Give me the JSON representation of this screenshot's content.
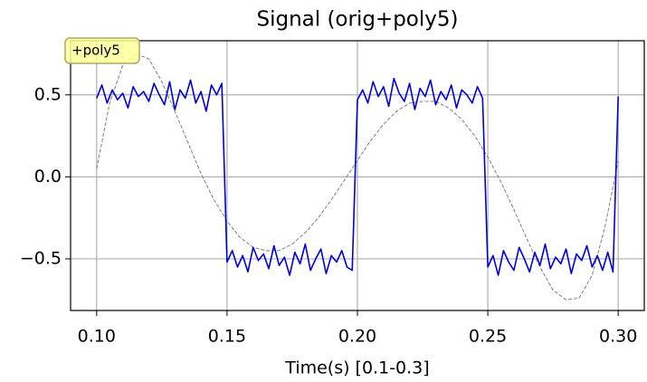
{
  "chart_data": {
    "type": "line",
    "title": "Signal (orig+poly5)",
    "x_label": "Time(s) [0.1-0.3]",
    "annotation": "+poly5",
    "xlim": [
      0.09,
      0.31
    ],
    "ylim": [
      -0.815,
      0.83
    ],
    "xticks": [
      {
        "value": 0.1,
        "label": "0.10"
      },
      {
        "value": 0.15,
        "label": "0.15"
      },
      {
        "value": 0.2,
        "label": "0.20"
      },
      {
        "value": 0.25,
        "label": "0.25"
      },
      {
        "value": 0.3,
        "label": "0.30"
      }
    ],
    "yticks": [
      {
        "value": -0.5,
        "label": "−0.5"
      },
      {
        "value": 0,
        "label": "0.0"
      },
      {
        "value": 0.5,
        "label": "0.5"
      }
    ],
    "grid": true,
    "series": [
      {
        "color": "#7f7f7f",
        "style": "dashed",
        "x": [
          0.1,
          0.105,
          0.11,
          0.115,
          0.12,
          0.125,
          0.13,
          0.135,
          0.14,
          0.145,
          0.15,
          0.155,
          0.16,
          0.165,
          0.17,
          0.175,
          0.18,
          0.185,
          0.19,
          0.195,
          0.2,
          0.205,
          0.21,
          0.215,
          0.22,
          0.225,
          0.23,
          0.235,
          0.24,
          0.245,
          0.25,
          0.255,
          0.26,
          0.265,
          0.27,
          0.275,
          0.28,
          0.285,
          0.29,
          0.295,
          0.3
        ],
        "values": [
          0.05,
          0.45,
          0.68,
          0.75,
          0.72,
          0.58,
          0.4,
          0.21,
          0.02,
          -0.14,
          -0.27,
          -0.37,
          -0.43,
          -0.45,
          -0.45,
          -0.41,
          -0.34,
          -0.25,
          -0.14,
          -0.02,
          0.1,
          0.22,
          0.32,
          0.4,
          0.45,
          0.46,
          0.46,
          0.42,
          0.35,
          0.25,
          0.12,
          -0.03,
          -0.2,
          -0.38,
          -0.55,
          -0.69,
          -0.75,
          -0.74,
          -0.6,
          -0.3,
          0.1
        ]
      },
      {
        "color": "#0000dd",
        "style": "solid",
        "x": [
          0.1,
          0.102,
          0.104,
          0.106,
          0.108,
          0.11,
          0.112,
          0.114,
          0.116,
          0.118,
          0.12,
          0.122,
          0.124,
          0.126,
          0.128,
          0.13,
          0.132,
          0.134,
          0.136,
          0.138,
          0.14,
          0.142,
          0.144,
          0.146,
          0.148,
          0.15,
          0.152,
          0.154,
          0.156,
          0.158,
          0.16,
          0.162,
          0.164,
          0.166,
          0.168,
          0.17,
          0.172,
          0.174,
          0.176,
          0.178,
          0.18,
          0.182,
          0.184,
          0.186,
          0.188,
          0.19,
          0.192,
          0.194,
          0.196,
          0.198,
          0.2,
          0.202,
          0.204,
          0.206,
          0.208,
          0.21,
          0.212,
          0.214,
          0.216,
          0.218,
          0.22,
          0.222,
          0.224,
          0.226,
          0.228,
          0.23,
          0.232,
          0.234,
          0.236,
          0.238,
          0.24,
          0.242,
          0.244,
          0.246,
          0.248,
          0.25,
          0.252,
          0.254,
          0.256,
          0.258,
          0.26,
          0.262,
          0.264,
          0.266,
          0.268,
          0.27,
          0.272,
          0.274,
          0.276,
          0.278,
          0.28,
          0.282,
          0.284,
          0.286,
          0.288,
          0.29,
          0.292,
          0.294,
          0.296,
          0.298,
          0.3
        ],
        "values": [
          0.48,
          0.56,
          0.45,
          0.53,
          0.47,
          0.51,
          0.42,
          0.55,
          0.49,
          0.52,
          0.46,
          0.57,
          0.5,
          0.44,
          0.58,
          0.41,
          0.53,
          0.48,
          0.59,
          0.45,
          0.52,
          0.4,
          0.56,
          0.5,
          0.57,
          -0.52,
          -0.45,
          -0.55,
          -0.48,
          -0.58,
          -0.43,
          -0.51,
          -0.47,
          -0.56,
          -0.42,
          -0.54,
          -0.49,
          -0.6,
          -0.46,
          -0.53,
          -0.41,
          -0.57,
          -0.5,
          -0.44,
          -0.59,
          -0.48,
          -0.52,
          -0.45,
          -0.55,
          -0.57,
          0.47,
          0.53,
          0.45,
          0.58,
          0.49,
          0.55,
          0.43,
          0.6,
          0.51,
          0.46,
          0.57,
          0.41,
          0.54,
          0.49,
          0.59,
          0.44,
          0.52,
          0.47,
          0.56,
          0.42,
          0.53,
          0.5,
          0.45,
          0.55,
          0.48,
          -0.55,
          -0.48,
          -0.6,
          -0.45,
          -0.52,
          -0.57,
          -0.43,
          -0.5,
          -0.58,
          -0.46,
          -0.54,
          -0.41,
          -0.56,
          -0.49,
          -0.53,
          -0.44,
          -0.59,
          -0.47,
          -0.51,
          -0.42,
          -0.55,
          -0.48,
          -0.57,
          -0.46,
          -0.58,
          0.49
        ]
      }
    ]
  }
}
